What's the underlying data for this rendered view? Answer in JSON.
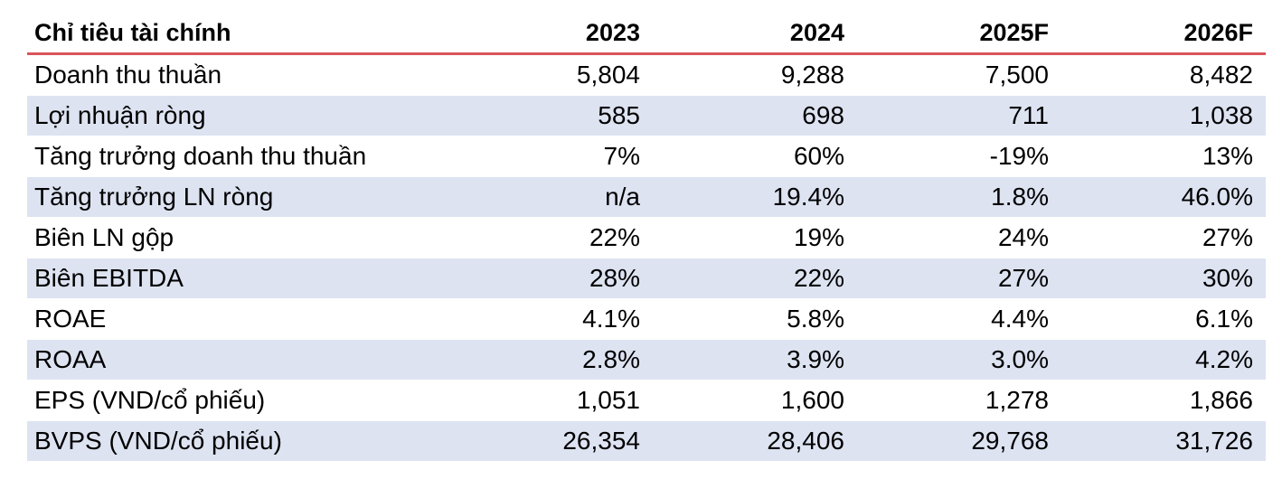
{
  "header": {
    "label": "Chỉ tiêu tài chính",
    "years": [
      "2023",
      "2024",
      "2025F",
      "2026F"
    ]
  },
  "rows": [
    {
      "label": "Doanh thu thuần",
      "values": [
        "5,804",
        "9,288",
        "7,500",
        "8,482"
      ]
    },
    {
      "label": "Lợi nhuận ròng",
      "values": [
        "585",
        "698",
        "711",
        "1,038"
      ]
    },
    {
      "label": "Tăng trưởng doanh thu thuần",
      "values": [
        "7%",
        "60%",
        "-19%",
        "13%"
      ]
    },
    {
      "label": "Tăng trưởng LN ròng",
      "values": [
        "n/a",
        "19.4%",
        "1.8%",
        "46.0%"
      ]
    },
    {
      "label": "Biên LN gộp",
      "values": [
        "22%",
        "19%",
        "24%",
        "27%"
      ]
    },
    {
      "label": "Biên EBITDA",
      "values": [
        "28%",
        "22%",
        "27%",
        "30%"
      ]
    },
    {
      "label": "ROAE",
      "values": [
        "4.1%",
        "5.8%",
        "4.4%",
        "6.1%"
      ]
    },
    {
      "label": "ROAA",
      "values": [
        "2.8%",
        "3.9%",
        "3.0%",
        "4.2%"
      ]
    },
    {
      "label": "EPS (VND/cổ phiếu)",
      "values": [
        "1,051",
        "1,600",
        "1,278",
        "1,866"
      ]
    },
    {
      "label": "BVPS (VND/cổ phiếu)",
      "values": [
        "26,354",
        "28,406",
        "29,768",
        "31,726"
      ]
    }
  ],
  "colors": {
    "header_rule": "#d9545b",
    "shaded_row": "#dde3f1"
  }
}
